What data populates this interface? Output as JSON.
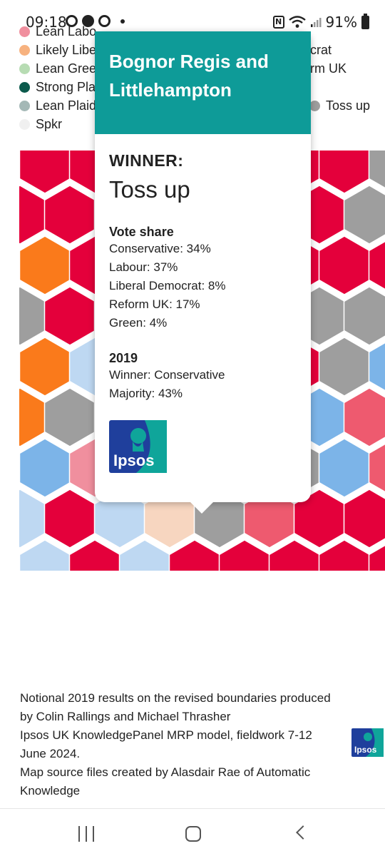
{
  "status_bar": {
    "time": "09:18",
    "battery": "91%",
    "nfc_label": "N"
  },
  "legend": {
    "items": [
      {
        "label": "Lean Labo",
        "color": "#f08f9e"
      },
      {
        "label": "Likely Libe",
        "color": "#f7b27f"
      },
      {
        "label": "Lean Gree",
        "color": "#b7dcb3"
      },
      {
        "label": "Strong Pla",
        "color": "#0b5a4c"
      },
      {
        "label": "Lean Plaid",
        "color": "#a4b8b6"
      },
      {
        "label": "Spkr",
        "color": "#f0f0f0"
      },
      {
        "label": "crat",
        "color": null
      },
      {
        "label": "rm UK",
        "color": null
      },
      {
        "label": "Toss up",
        "color": "#9e9e9e"
      }
    ]
  },
  "popup": {
    "constituency": "Bognor Regis and Littlehampton",
    "winner_label": "WINNER:",
    "winner_value": "Toss up",
    "vote_share_title": "Vote share",
    "vote_share": [
      "Conservative: 34%",
      "Labour: 37%",
      "Liberal Democrat: 8%",
      "Reform UK: 17%",
      "Green: 4%"
    ],
    "y2019_title": "2019",
    "y2019_lines": [
      "Winner: Conservative",
      "Majority: 43%"
    ],
    "logo_text": "Ipsos",
    "header_color": "#0e9b98"
  },
  "footnote": {
    "lines": [
      "Notional 2019 results on the revised boundaries produced by Colin Rallings and Michael Thrasher",
      "Ipsos UK KnowledgePanel MRP model, fieldwork 7-12 June 2024.",
      "Map source files created by Alasdair Rae of Automatic Knowledge"
    ],
    "logo_text": "Ipsos"
  },
  "colors": {
    "strong_labour": "#e4003b",
    "lean_labour": "#f08f9e",
    "likely_labour": "#ee5a6f",
    "likely_libdem": "#fa7a1b",
    "lean_libdem": "#f7d6c0",
    "toss_up": "#9e9e9e",
    "lean_conservative": "#bed8f2",
    "likely_conservative": "#7cb4e8",
    "ipsos_blue": "#1f3f9c",
    "ipsos_teal": "#0fa59a"
  }
}
